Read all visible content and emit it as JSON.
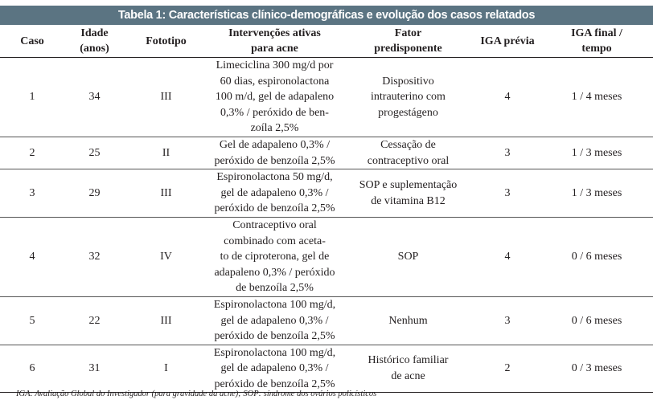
{
  "title": "Tabela 1: Características clínico-demográficas e evolução dos casos relatados",
  "headers": [
    "Caso",
    "Idade\n(anos)",
    "Fototipo",
    "Intervenções ativas\npara acne",
    "Fator\npredisponente",
    "IGA prévia",
    "IGA final /\ntempo"
  ],
  "rows": [
    [
      "1",
      "34",
      "III",
      "Limeciclina 300 mg/d por\n60 dias, espironolactona\n100 m/d, gel de adapaleno\n0,3% / peróxido de ben-\nzoíla 2,5%",
      "Dispositivo\nintrauterino com\nprogestágeno",
      "4",
      "1 / 4 meses"
    ],
    [
      "2",
      "25",
      "II",
      "Gel de adapaleno 0,3% /\nperóxido de benzoíla 2,5%",
      "Cessação de\ncontraceptivo oral",
      "3",
      "1 / 3 meses"
    ],
    [
      "3",
      "29",
      "III",
      "Espironolactona 50 mg/d,\ngel de adapaleno 0,3% /\nperóxido de benzoíla 2,5%",
      "SOP e suplementação\nde vitamina B12",
      "3",
      "1 / 3 meses"
    ],
    [
      "4",
      "32",
      "IV",
      "Contraceptivo oral\ncombinado com aceta-\nto de ciproterona, gel de\nadapaleno 0,3% / peróxido\nde benzoíla 2,5%",
      "SOP",
      "4",
      "0 / 6 meses"
    ],
    [
      "5",
      "22",
      "III",
      "Espironolactona 100 mg/d,\ngel de adapaleno 0,3% /\nperóxido de benzoíla 2,5%",
      "Nenhum",
      "3",
      "0 / 6 meses"
    ],
    [
      "6",
      "31",
      "I",
      "Espironolactona 100 mg/d,\ngel de adapaleno 0,3% /\nperóxido de benzoíla 2,5%",
      "Histórico familiar\nde acne",
      "2",
      "0 / 3 meses"
    ]
  ],
  "footnote": "IGA: Avaliação Global do Investigador (para gravidade da acne); SOP: síndrome dos ovários policísticos"
}
